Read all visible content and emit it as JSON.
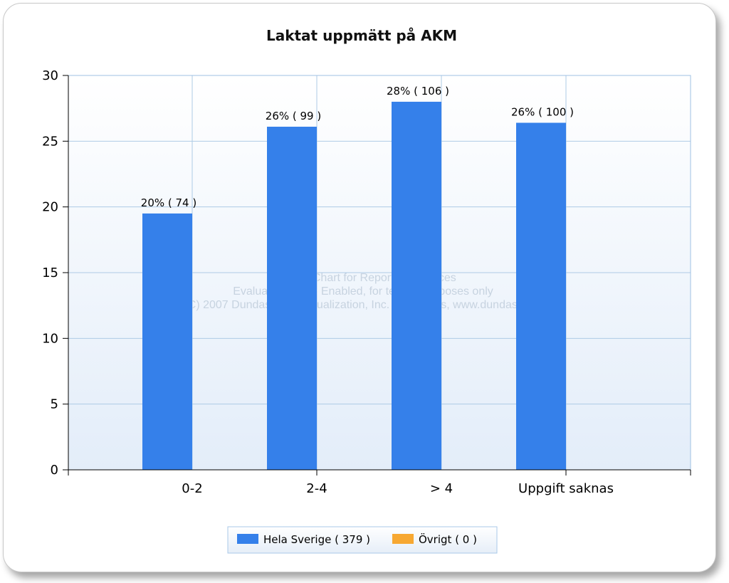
{
  "chart_data": {
    "type": "bar",
    "title": "Laktat uppmätt på AKM",
    "categories": [
      "0-2",
      "2-4",
      "> 4",
      "Uppgift saknas"
    ],
    "series": [
      {
        "name": "Hela Sverige  ( 379 )",
        "color": "#3580ea",
        "values": [
          19.5,
          26.1,
          28.0,
          26.4
        ],
        "labels": [
          "20% ( 74 )",
          "26% ( 99 )",
          "28% ( 106 )",
          "26% ( 100 )"
        ]
      },
      {
        "name": "Övrigt  ( 0 )",
        "color": "#f7a832",
        "values": [
          0,
          0,
          0,
          0
        ],
        "labels": []
      }
    ],
    "ylim": [
      0,
      30
    ],
    "yticks": [
      "0",
      "5",
      "10",
      "15",
      "20",
      "25",
      "30"
    ],
    "grid": true,
    "legend": "bottom-center"
  },
  "watermark": [
    "Dundas Chart for Reporting Services",
    "Evaluation Mode Enabled, for testing purposes only",
    "(C) 2007 Dundas Data Visualization, Inc. and others, www.dundas.com"
  ]
}
